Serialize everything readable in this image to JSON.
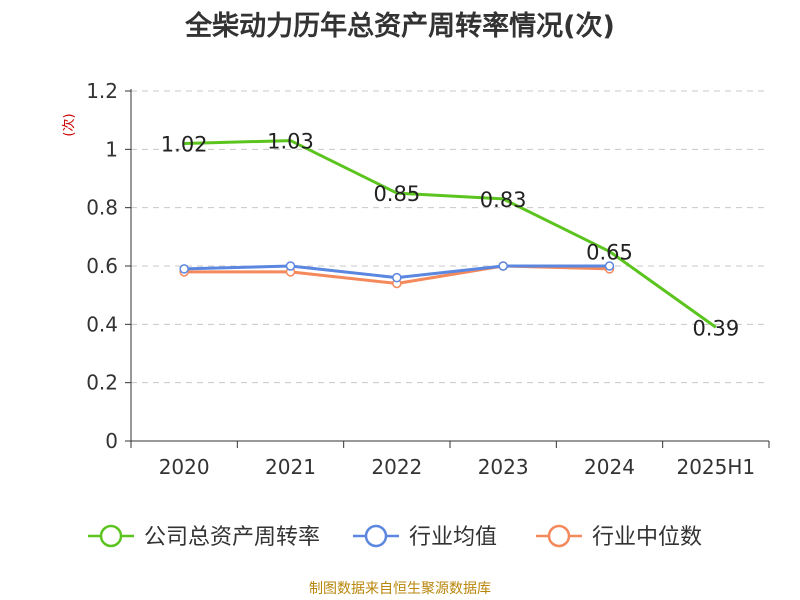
{
  "title": "全柴动力历年总资产周转率情况(次)",
  "source": "制图数据来自恒生聚源数据库",
  "chart_data": {
    "type": "line",
    "title": "全柴动力历年总资产周转率情况(次)",
    "ylabel": "(次)",
    "xlabel": "",
    "categories": [
      "2020",
      "2021",
      "2022",
      "2023",
      "2024",
      "2025H1"
    ],
    "ylim": [
      0,
      1.2
    ],
    "yticks": [
      "0",
      "0.2",
      "0.4",
      "0.6",
      "0.8",
      "1",
      "1.2"
    ],
    "grid": true,
    "legend_position": "bottom",
    "series": [
      {
        "name": "公司总资产周转率",
        "color": "#5cc41f",
        "values": [
          1.02,
          1.03,
          0.85,
          0.83,
          0.65,
          0.39
        ],
        "labels": [
          "1.02",
          "1.03",
          "0.85",
          "0.83",
          "0.65",
          "0.39"
        ]
      },
      {
        "name": "行业均值",
        "color": "#5b87e0",
        "values": [
          0.59,
          0.6,
          0.56,
          0.6,
          0.6,
          null
        ]
      },
      {
        "name": "行业中位数",
        "color": "#f4895b",
        "values": [
          0.58,
          0.58,
          0.54,
          0.6,
          0.59,
          null
        ]
      }
    ]
  }
}
